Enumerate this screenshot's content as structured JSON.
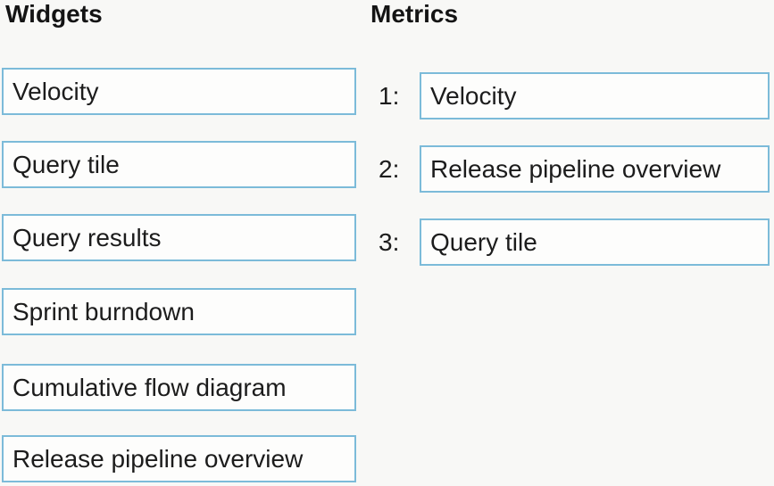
{
  "widgets": {
    "title": "Widgets",
    "items": [
      {
        "label": "Velocity"
      },
      {
        "label": "Query tile"
      },
      {
        "label": "Query results"
      },
      {
        "label": "Sprint burndown"
      },
      {
        "label": "Cumulative flow diagram"
      },
      {
        "label": "Release pipeline overview"
      }
    ]
  },
  "metrics": {
    "title": "Metrics",
    "slots": [
      {
        "number": "1:",
        "value": "Velocity"
      },
      {
        "number": "2:",
        "value": "Release pipeline overview"
      },
      {
        "number": "3:",
        "value": "Query tile"
      }
    ]
  },
  "colors": {
    "box_border": "#7cbbd9",
    "box_fill": "#fdfdfc",
    "background": "#f8f8f6",
    "text": "#1c1c1c"
  }
}
